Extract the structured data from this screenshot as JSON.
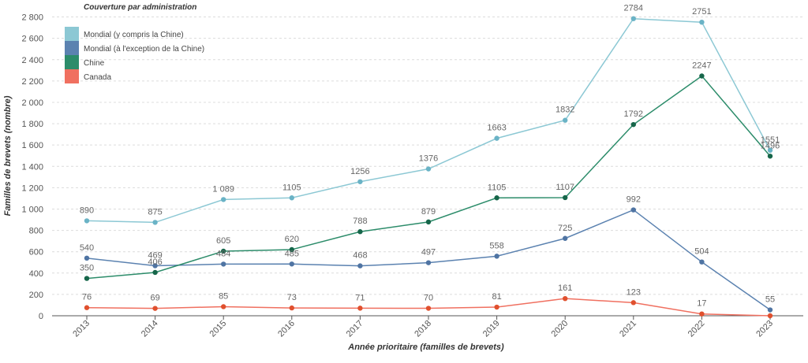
{
  "chart_data": {
    "type": "line",
    "xlabel": "Année prioritaire (familles de brevets)",
    "ylabel": "Familles de brevets (nombre)",
    "legend_title": "Couverture par administration",
    "legend_position": "top-left",
    "ylim": [
      0,
      2900
    ],
    "yticks": [
      0,
      200,
      400,
      600,
      800,
      1000,
      1200,
      1400,
      1600,
      1800,
      2000,
      2200,
      2400,
      2600,
      2800
    ],
    "ytick_labels": [
      "0",
      "200",
      "400",
      "600",
      "800",
      "1 000",
      "1 200",
      "1 400",
      "1 600",
      "1 800",
      "2 000",
      "2 200",
      "2 400",
      "2 600",
      "2 800"
    ],
    "categories": [
      "2013",
      "2014",
      "2015",
      "2016",
      "2017",
      "2018",
      "2019",
      "2020",
      "2021",
      "2022",
      "2023"
    ],
    "grid": true,
    "series": [
      {
        "name": "Mondial (y compris la Chine)",
        "color": "#8cc8d4",
        "marker_color": "#6ab3c6",
        "values": [
          890,
          875,
          1089,
          1105,
          1256,
          1376,
          1663,
          1832,
          2784,
          2751,
          1551
        ],
        "labels": [
          "890",
          "875",
          "1 089",
          "1105",
          "1256",
          "1376",
          "1663",
          "1832",
          "2784",
          "2751",
          "1551"
        ]
      },
      {
        "name": "Mondial (à l'exception de la Chine)",
        "color": "#5b82b0",
        "marker_color": "#4f74a3",
        "values": [
          540,
          469,
          484,
          485,
          468,
          497,
          558,
          725,
          992,
          504,
          55
        ],
        "labels": [
          "540",
          "469",
          "484",
          "485",
          "468",
          "497",
          "558",
          "725",
          "992",
          "504",
          "55"
        ]
      },
      {
        "name": "Chine",
        "color": "#2c8c6a",
        "marker_color": "#16664a",
        "values": [
          350,
          406,
          605,
          620,
          788,
          879,
          1105,
          1107,
          1792,
          2247,
          1496
        ],
        "labels": [
          "350",
          "406",
          "605",
          "620",
          "788",
          "879",
          "1105",
          "1107",
          "1792",
          "2247",
          "1496"
        ]
      },
      {
        "name": "Canada",
        "color": "#f07060",
        "marker_color": "#e0502e",
        "values": [
          76,
          69,
          85,
          73,
          71,
          70,
          81,
          161,
          123,
          17,
          0
        ],
        "labels": [
          "76",
          "69",
          "85",
          "73",
          "71",
          "70",
          "81",
          "161",
          "123",
          "17",
          ""
        ]
      }
    ]
  }
}
